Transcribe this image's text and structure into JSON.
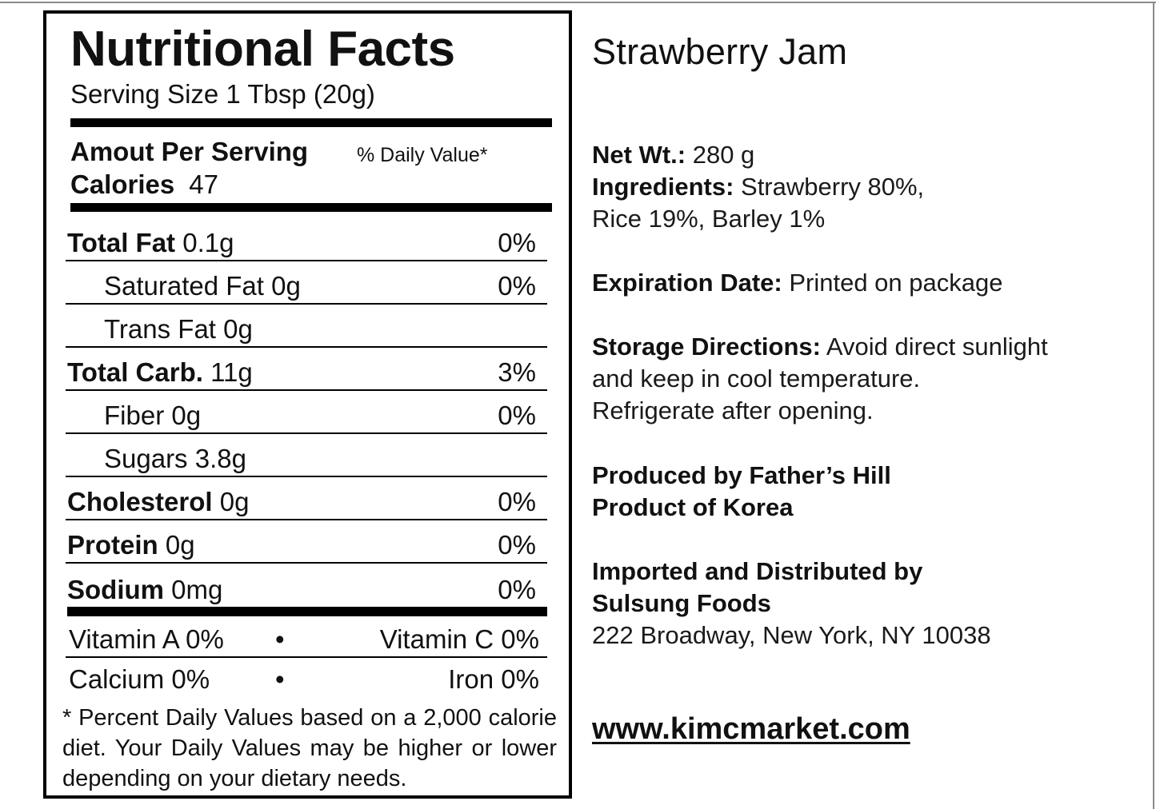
{
  "nutrition": {
    "title": "Nutritional Facts",
    "serving_size": "Serving Size 1 Tbsp (20g)",
    "amount_per_serving": "Amout Per Serving",
    "daily_value_header": "% Daily Value*",
    "calories_label": "Calories",
    "calories_value": "47",
    "rows": [
      {
        "label": "Total Fat",
        "amount": "0.1g",
        "pct": "0%"
      },
      {
        "label": "Saturated Fat",
        "amount": "0g",
        "pct": "0%"
      },
      {
        "label": "Trans Fat",
        "amount": "0g",
        "pct": ""
      },
      {
        "label": "Total Carb.",
        "amount": "11g",
        "pct": "3%"
      },
      {
        "label": "Fiber",
        "amount": "0g",
        "pct": "0%"
      },
      {
        "label": "Sugars",
        "amount": "3.8g",
        "pct": ""
      },
      {
        "label": "Cholesterol",
        "amount": "0g",
        "pct": "0%"
      },
      {
        "label": "Protein",
        "amount": "0g",
        "pct": "0%"
      },
      {
        "label": "Sodium",
        "amount": "0mg",
        "pct": "0%"
      }
    ],
    "vitamins": [
      {
        "left": "Vitamin A 0%",
        "right": "Vitamin C 0%"
      },
      {
        "left": "Calcium 0%",
        "right": "Iron 0%"
      }
    ],
    "bullet": "•",
    "footnote": "* Percent Daily Values based on a 2,000 calorie diet. Your Daily Values may be higher or lower depending on your dietary needs."
  },
  "product": {
    "name": "Strawberry Jam",
    "net_wt_label": "Net Wt.:",
    "net_wt_value": " 280 g",
    "ingredients_label": "Ingredients:",
    "ingredients_line1": " Strawberry 80%,",
    "ingredients_line2": "Rice 19%, Barley 1%",
    "expiration_label": "Expiration Date:",
    "expiration_value": " Printed on package",
    "storage_label": "Storage Directions:",
    "storage_line1": " Avoid direct sunlight",
    "storage_line2": "and keep in cool temperature.",
    "storage_line3": "Refrigerate after opening.",
    "produced_by": "Produced by Father’s Hill",
    "product_of": "Product of Korea",
    "imported_by": "Imported and Distributed by",
    "distributor": "Sulsung Foods",
    "address": "222 Broadway, New York, NY 10038",
    "website": "www.kimcmarket.com"
  }
}
